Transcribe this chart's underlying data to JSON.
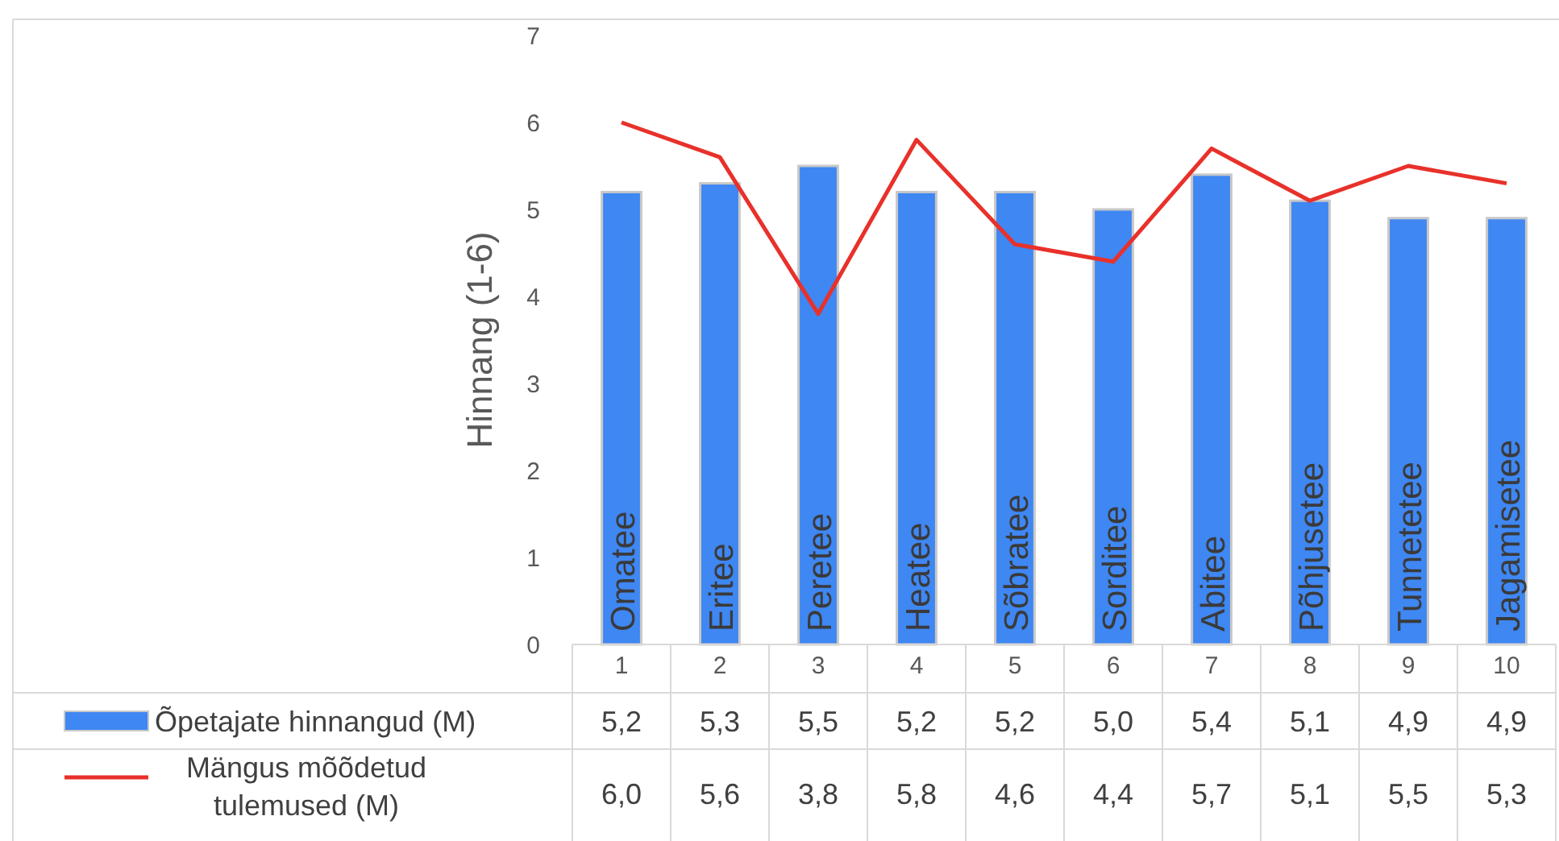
{
  "chart_data": {
    "type": "bar",
    "ylabel": "Hinnang (1-6)",
    "categories": [
      "1",
      "2",
      "3",
      "4",
      "5",
      "6",
      "7",
      "8",
      "9",
      "10"
    ],
    "ylim": [
      0,
      7
    ],
    "yticks": [
      0,
      1,
      2,
      3,
      4,
      5,
      6,
      7
    ],
    "legend": "bottom",
    "series": [
      {
        "name": "Õpetajate hinnangud (M)",
        "color": "#3f87f2",
        "values": [
          5.2,
          5.3,
          5.5,
          5.2,
          5.2,
          5.0,
          5.4,
          5.1,
          4.9,
          4.9
        ],
        "value_labels": [
          "5,2",
          "5,3",
          "5,5",
          "5,2",
          "5,2",
          "5,0",
          "5,4",
          "5,1",
          "4,9",
          "4,9"
        ]
      },
      {
        "name": "Mängus mõõdetud tulemused (M)",
        "type": "line",
        "color": "#e8312a",
        "values": [
          6.0,
          5.6,
          3.8,
          5.8,
          4.6,
          4.4,
          5.7,
          5.1,
          5.5,
          5.3
        ],
        "value_labels": [
          "6,0",
          "5,6",
          "3,8",
          "5,8",
          "4,6",
          "4,4",
          "5,7",
          "5,1",
          "5,5",
          "5,3"
        ]
      }
    ],
    "annotations": [
      {
        "text": "Omatee",
        "x": "1",
        "y": 0
      },
      {
        "text": "Eritee",
        "x": "2",
        "y": 0
      },
      {
        "text": "Peretee",
        "x": "3",
        "y": 0
      },
      {
        "text": "Heatee",
        "x": "4",
        "y": 0
      },
      {
        "text": "Sõbratee",
        "x": "5",
        "y": 0
      },
      {
        "text": "Sorditee",
        "x": "6",
        "y": 0
      },
      {
        "text": "Abitee",
        "x": "7",
        "y": 0
      },
      {
        "text": "Põhjusetee",
        "x": "8",
        "y": 0
      },
      {
        "text": "Tunnetetee",
        "x": "9",
        "y": 0
      },
      {
        "text": "Jagamisetee",
        "x": "10",
        "y": 0
      }
    ]
  }
}
